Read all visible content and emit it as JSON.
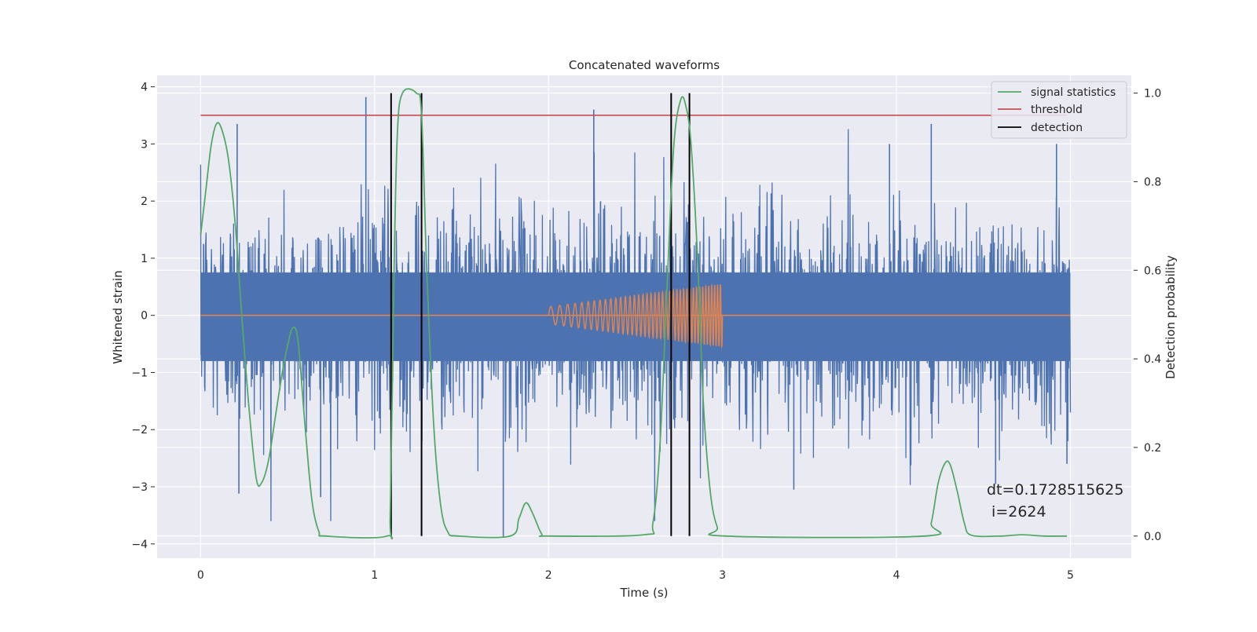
{
  "chart_data": {
    "type": "line",
    "title": "Concatenated waveforms",
    "xlabel": "Time (s)",
    "ylabel": "Whitened strain",
    "y2label": "Detection probability",
    "xlim": [
      -0.25,
      5.35
    ],
    "ylim": [
      -4.25,
      4.2
    ],
    "y2lim": [
      -0.05,
      1.04
    ],
    "xticks": [
      0,
      1,
      2,
      3,
      4,
      5
    ],
    "yticks": [
      -4,
      -3,
      -2,
      -1,
      0,
      1,
      2,
      3,
      4
    ],
    "y2ticks": [
      0.0,
      0.2,
      0.4,
      0.6,
      0.8,
      1.0
    ],
    "y2tick_labels": [
      "0.0",
      "0.2",
      "0.4",
      "0.6",
      "0.8",
      "1.0"
    ],
    "grid": true,
    "legend_position": "top-right",
    "series": [
      {
        "name": "",
        "axis": "left",
        "color": "#4c72b0",
        "kind": "noise",
        "x_range": [
          0,
          5
        ],
        "typical_range": [
          -0.8,
          0.75
        ],
        "peak_range": [
          -3.9,
          3.85
        ],
        "spikes": [
          [
            0.95,
            3.82
          ],
          [
            0.21,
            3.35
          ],
          [
            2.26,
            3.6
          ],
          [
            4.2,
            3.35
          ],
          [
            1.74,
            -3.88
          ],
          [
            0.22,
            -3.12
          ],
          [
            0.69,
            -3.18
          ],
          [
            3.41,
            -3.05
          ],
          [
            4.57,
            -2.95
          ],
          [
            4.92,
            3.0
          ],
          [
            4.98,
            -2.6
          ],
          [
            3.96,
            3.0
          ]
        ]
      },
      {
        "name": "",
        "axis": "left",
        "color": "#dd8452",
        "kind": "chirp",
        "baseline": [
          [
            0,
            0
          ],
          [
            5,
            0
          ]
        ],
        "chirp_x_range": [
          2.0,
          3.0
        ],
        "chirp_amp_range": [
          0.15,
          0.55
        ]
      },
      {
        "name": "signal statistics",
        "axis": "right",
        "color": "#55a868",
        "points": [
          [
            0.0,
            0.68
          ],
          [
            0.03,
            0.78
          ],
          [
            0.06,
            0.88
          ],
          [
            0.09,
            0.93
          ],
          [
            0.12,
            0.92
          ],
          [
            0.16,
            0.85
          ],
          [
            0.2,
            0.7
          ],
          [
            0.24,
            0.48
          ],
          [
            0.28,
            0.28
          ],
          [
            0.32,
            0.13
          ],
          [
            0.35,
            0.12
          ],
          [
            0.39,
            0.17
          ],
          [
            0.43,
            0.27
          ],
          [
            0.47,
            0.37
          ],
          [
            0.5,
            0.43
          ],
          [
            0.53,
            0.47
          ],
          [
            0.56,
            0.44
          ],
          [
            0.6,
            0.25
          ],
          [
            0.64,
            0.08
          ],
          [
            0.68,
            0.01
          ],
          [
            0.72,
            0.0
          ],
          [
            1.07,
            0.0
          ],
          [
            1.09,
            0.05
          ],
          [
            1.11,
            0.55
          ],
          [
            1.13,
            0.9
          ],
          [
            1.16,
            1.0
          ],
          [
            1.24,
            1.0
          ],
          [
            1.27,
            0.95
          ],
          [
            1.3,
            0.6
          ],
          [
            1.34,
            0.25
          ],
          [
            1.38,
            0.07
          ],
          [
            1.42,
            0.01
          ],
          [
            1.48,
            0.0
          ],
          [
            1.78,
            0.0
          ],
          [
            1.83,
            0.04
          ],
          [
            1.87,
            0.075
          ],
          [
            1.91,
            0.05
          ],
          [
            1.96,
            0.005
          ],
          [
            2.0,
            0.0
          ],
          [
            2.55,
            0.003
          ],
          [
            2.6,
            0.03
          ],
          [
            2.64,
            0.2
          ],
          [
            2.68,
            0.55
          ],
          [
            2.72,
            0.88
          ],
          [
            2.76,
            0.985
          ],
          [
            2.79,
            0.97
          ],
          [
            2.82,
            0.88
          ],
          [
            2.86,
            0.6
          ],
          [
            2.89,
            0.3
          ],
          [
            2.93,
            0.1
          ],
          [
            2.97,
            0.02
          ],
          [
            3.02,
            0.0
          ],
          [
            4.16,
            0.0
          ],
          [
            4.2,
            0.03
          ],
          [
            4.24,
            0.12
          ],
          [
            4.28,
            0.165
          ],
          [
            4.31,
            0.16
          ],
          [
            4.35,
            0.1
          ],
          [
            4.39,
            0.03
          ],
          [
            4.43,
            0.002
          ],
          [
            4.6,
            0.0
          ],
          [
            4.72,
            0.003
          ],
          [
            4.85,
            0.0
          ],
          [
            4.98,
            0.0
          ]
        ]
      },
      {
        "name": "threshold",
        "axis": "right",
        "color": "#c44e52",
        "points": [
          [
            0.0,
            0.95
          ],
          [
            4.98,
            0.95
          ]
        ]
      },
      {
        "name": "detection",
        "axis": "right",
        "color": "#000000",
        "vlines": [
          1.095,
          1.27,
          2.705,
          2.81
        ],
        "vline_range": [
          0.0,
          1.0
        ]
      }
    ],
    "annotations": [
      "dt=0.1728515625",
      " i=2624"
    ]
  }
}
